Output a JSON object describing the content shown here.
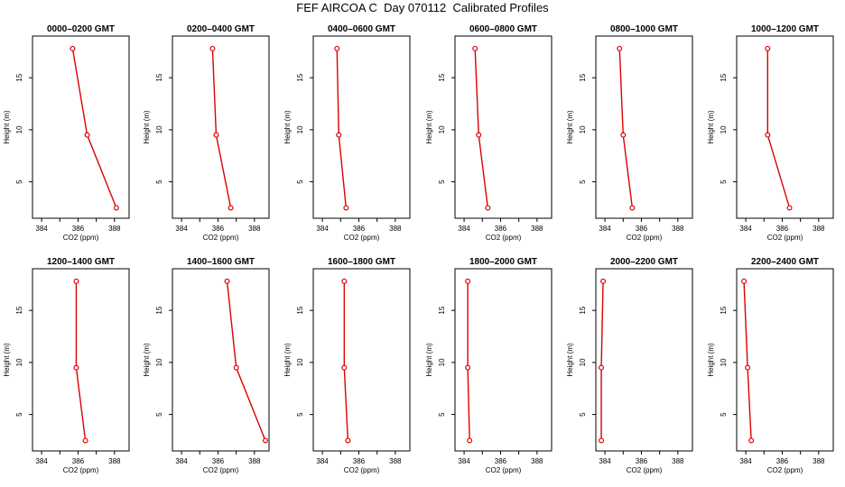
{
  "title": "FEF AIRCOA C  Day 070112  Calibrated Profiles",
  "colors": {
    "line": "#dd0000",
    "axis": "#000000",
    "background": "#ffffff"
  },
  "chart_data": [
    {
      "type": "line",
      "title": "0000–0200 GMT",
      "xlabel": "CO2 (ppm)",
      "ylabel": "Height (m)",
      "xlim": [
        383.5,
        388.8
      ],
      "ylim": [
        1.5,
        19
      ],
      "xticks": [
        384,
        386,
        388
      ],
      "yticks": [
        5,
        10,
        15
      ],
      "x": [
        385.7,
        386.5,
        388.1
      ],
      "y": [
        17.8,
        9.5,
        2.5
      ]
    },
    {
      "type": "line",
      "title": "0200–0400 GMT",
      "xlabel": "CO2 (ppm)",
      "ylabel": "Height (m)",
      "xlim": [
        383.5,
        388.8
      ],
      "ylim": [
        1.5,
        19
      ],
      "xticks": [
        384,
        386,
        388
      ],
      "yticks": [
        5,
        10,
        15
      ],
      "x": [
        385.7,
        385.9,
        386.7
      ],
      "y": [
        17.8,
        9.5,
        2.5
      ]
    },
    {
      "type": "line",
      "title": "0400–0600 GMT",
      "xlabel": "CO2 (ppm)",
      "ylabel": "Height (m)",
      "xlim": [
        383.5,
        388.8
      ],
      "ylim": [
        1.5,
        19
      ],
      "xticks": [
        384,
        386,
        388
      ],
      "yticks": [
        5,
        10,
        15
      ],
      "x": [
        384.8,
        384.9,
        385.3
      ],
      "y": [
        17.8,
        9.5,
        2.5
      ]
    },
    {
      "type": "line",
      "title": "0600–0800 GMT",
      "xlabel": "CO2 (ppm)",
      "ylabel": "Height (m)",
      "xlim": [
        383.5,
        388.8
      ],
      "ylim": [
        1.5,
        19
      ],
      "xticks": [
        384,
        386,
        388
      ],
      "yticks": [
        5,
        10,
        15
      ],
      "x": [
        384.6,
        384.8,
        385.3
      ],
      "y": [
        17.8,
        9.5,
        2.5
      ]
    },
    {
      "type": "line",
      "title": "0800–1000 GMT",
      "xlabel": "CO2 (ppm)",
      "ylabel": "Height (m)",
      "xlim": [
        383.5,
        388.8
      ],
      "ylim": [
        1.5,
        19
      ],
      "xticks": [
        384,
        386,
        388
      ],
      "yticks": [
        5,
        10,
        15
      ],
      "x": [
        384.8,
        385.0,
        385.5
      ],
      "y": [
        17.8,
        9.5,
        2.5
      ]
    },
    {
      "type": "line",
      "title": "1000–1200 GMT",
      "xlabel": "CO2 (ppm)",
      "ylabel": "Height (m)",
      "xlim": [
        383.5,
        388.8
      ],
      "ylim": [
        1.5,
        19
      ],
      "xticks": [
        384,
        386,
        388
      ],
      "yticks": [
        5,
        10,
        15
      ],
      "x": [
        385.2,
        385.2,
        386.4
      ],
      "y": [
        17.8,
        9.5,
        2.5
      ]
    },
    {
      "type": "line",
      "title": "1200–1400 GMT",
      "xlabel": "CO2 (ppm)",
      "ylabel": "Height (m)",
      "xlim": [
        383.5,
        388.8
      ],
      "ylim": [
        1.5,
        19
      ],
      "xticks": [
        384,
        386,
        388
      ],
      "yticks": [
        5,
        10,
        15
      ],
      "x": [
        385.9,
        385.9,
        386.4
      ],
      "y": [
        17.8,
        9.5,
        2.5
      ]
    },
    {
      "type": "line",
      "title": "1400–1600 GMT",
      "xlabel": "CO2 (ppm)",
      "ylabel": "Height (m)",
      "xlim": [
        383.5,
        388.8
      ],
      "ylim": [
        1.5,
        19
      ],
      "xticks": [
        384,
        386,
        388
      ],
      "yticks": [
        5,
        10,
        15
      ],
      "x": [
        386.5,
        387.0,
        388.6
      ],
      "y": [
        17.8,
        9.5,
        2.5
      ]
    },
    {
      "type": "line",
      "title": "1600–1800 GMT",
      "xlabel": "CO2 (ppm)",
      "ylabel": "Height (m)",
      "xlim": [
        383.5,
        388.8
      ],
      "ylim": [
        1.5,
        19
      ],
      "xticks": [
        384,
        386,
        388
      ],
      "yticks": [
        5,
        10,
        15
      ],
      "x": [
        385.2,
        385.2,
        385.4
      ],
      "y": [
        17.8,
        9.5,
        2.5
      ]
    },
    {
      "type": "line",
      "title": "1800–2000 GMT",
      "xlabel": "CO2 (ppm)",
      "ylabel": "Height (m)",
      "xlim": [
        383.5,
        388.8
      ],
      "ylim": [
        1.5,
        19
      ],
      "xticks": [
        384,
        386,
        388
      ],
      "yticks": [
        5,
        10,
        15
      ],
      "x": [
        384.2,
        384.2,
        384.3
      ],
      "y": [
        17.8,
        9.5,
        2.5
      ]
    },
    {
      "type": "line",
      "title": "2000–2200 GMT",
      "xlabel": "CO2 (ppm)",
      "ylabel": "Height (m)",
      "xlim": [
        383.5,
        388.8
      ],
      "ylim": [
        1.5,
        19
      ],
      "xticks": [
        384,
        386,
        388
      ],
      "yticks": [
        5,
        10,
        15
      ],
      "x": [
        383.9,
        383.8,
        383.8
      ],
      "y": [
        17.8,
        9.5,
        2.5
      ]
    },
    {
      "type": "line",
      "title": "2200–2400 GMT",
      "xlabel": "CO2 (ppm)",
      "ylabel": "Height (m)",
      "xlim": [
        383.5,
        388.8
      ],
      "ylim": [
        1.5,
        19
      ],
      "xticks": [
        384,
        386,
        388
      ],
      "yticks": [
        5,
        10,
        15
      ],
      "x": [
        383.9,
        384.1,
        384.3
      ],
      "y": [
        17.8,
        9.5,
        2.5
      ]
    }
  ]
}
